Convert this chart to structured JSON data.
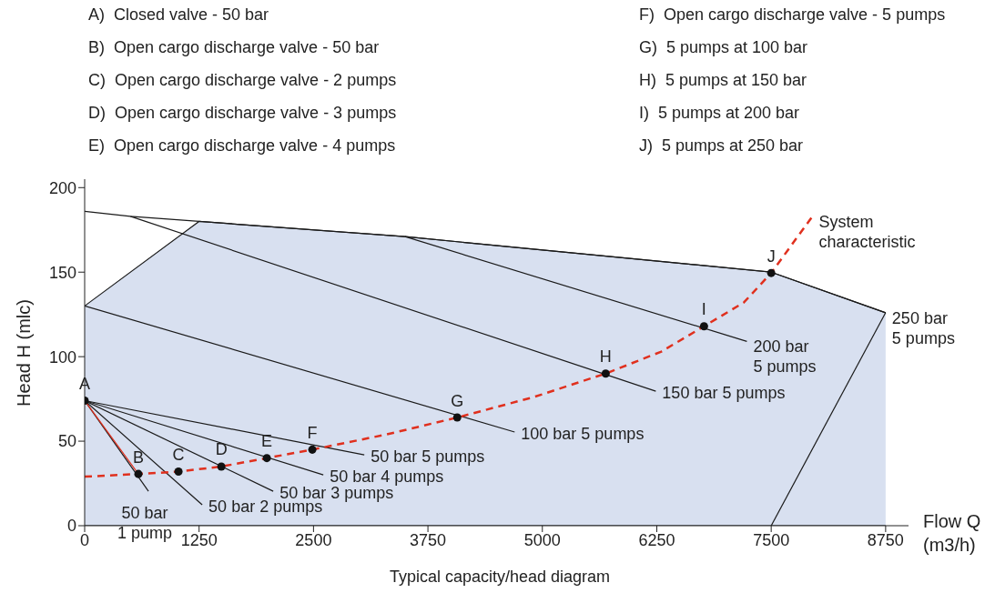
{
  "chart_data": {
    "type": "line",
    "title": "Typical capacity/head diagram",
    "xlabel": "Flow Q\n(m3/h)",
    "ylabel": "Head H (mlc)",
    "xlim": [
      0,
      9000
    ],
    "xticks": [
      0,
      1250,
      2500,
      3750,
      5000,
      6250,
      7500,
      8750
    ],
    "ylim": [
      0,
      205
    ],
    "yticks": [
      0,
      50,
      100,
      150,
      200
    ],
    "series": [
      {
        "color": "#1a1a1a",
        "x": [
          0,
          500,
          1250,
          3500,
          7500,
          8750
        ],
        "values": [
          186,
          183,
          180,
          171,
          150,
          126
        ]
      },
      {
        "color": "#1a1a1a",
        "x": [
          8750,
          7500
        ],
        "values": [
          126,
          0
        ]
      },
      {
        "color": "#1a1a1a",
        "x": [
          3500,
          7234
        ],
        "values": [
          171,
          109
        ]
      },
      {
        "color": "#1a1a1a",
        "x": [
          500,
          6239
        ],
        "values": [
          183,
          79.6
        ]
      },
      {
        "color": "#1a1a1a",
        "x": [
          0,
          4697
        ],
        "values": [
          130,
          55.4
        ]
      },
      {
        "color": "#1a1a1a",
        "x": [
          0,
          697
        ],
        "values": [
          74,
          20.4
        ]
      },
      {
        "color": "#1a1a1a",
        "x": [
          0,
          1284
        ],
        "values": [
          74,
          12.4
        ]
      },
      {
        "color": "#1a1a1a",
        "x": [
          0,
          2060
        ],
        "values": [
          74,
          20.4
        ]
      },
      {
        "color": "#1a1a1a",
        "x": [
          0,
          2607
        ],
        "values": [
          74,
          30.1
        ]
      },
      {
        "color": "#1a1a1a",
        "x": [
          0,
          3055
        ],
        "values": [
          74,
          41.9
        ]
      },
      {
        "color": "#e0301e",
        "x": [
          0,
          587
        ],
        "values": [
          74,
          30.6
        ]
      },
      {
        "color": "#e0301e",
        "line_style": "dashed",
        "x": [
          0,
          587,
          1025,
          1493,
          1990,
          2487,
          3300,
          4070,
          4900,
          5692,
          6300,
          6766,
          7200,
          7500,
          7950
        ],
        "values": [
          29,
          30.6,
          32,
          35,
          40,
          45,
          54,
          64,
          76,
          90,
          103,
          118,
          132,
          149.5,
          183
        ]
      },
      {
        "type": "scatter",
        "color": "#111111",
        "marker": "circle",
        "x": [
          0,
          587,
          1025,
          1493,
          1990,
          2487,
          4070,
          5692,
          6766,
          7500
        ],
        "values": [
          74,
          30.6,
          32,
          35,
          40,
          45,
          64,
          90,
          118,
          149.5
        ],
        "value_labels": [
          "A",
          "B",
          "C",
          "D",
          "E",
          "F",
          "G",
          "H",
          "I",
          "J"
        ]
      },
      {
        "type": "area",
        "color": "#d8e0f0",
        "x": [
          0,
          1250,
          3500,
          7500,
          8750
        ],
        "values": [
          130,
          180,
          171,
          150,
          126
        ]
      }
    ],
    "annotations": [
      "A)  Closed valve - 50 bar",
      "B)  Open cargo discharge valve - 50 bar",
      "C)  Open cargo discharge valve - 2 pumps",
      "D)  Open cargo discharge valve - 3 pumps",
      "E)  Open cargo discharge valve - 4 pumps",
      "F)  Open cargo discharge valve - 5 pumps",
      "G)  5 pumps at 100 bar",
      "H)  5 pumps at 150 bar",
      "I)  5 pumps at 200 bar",
      "J)  5 pumps at 250 bar",
      {
        "text": "System\ncharacteristic",
        "x": 7950,
        "y": 183
      },
      {
        "text": "250 bar\n5 pumps",
        "x": 8750,
        "y": 126
      },
      {
        "text": "200 bar\n5 pumps",
        "x": 7234,
        "y": 109
      },
      {
        "text": "150 bar 5 pumps",
        "x": 6239,
        "y": 79.6
      },
      {
        "text": "100 bar 5 pumps",
        "x": 4697,
        "y": 55.4
      },
      {
        "text": "50 bar 5 pumps",
        "x": 3055,
        "y": 41.9
      },
      {
        "text": "50 bar 4 pumps",
        "x": 2607,
        "y": 30.1
      },
      {
        "text": "50 bar 3 pumps",
        "x": 2060,
        "y": 20.4
      },
      {
        "text": "50 bar 2 pumps",
        "x": 1284,
        "y": 12.4
      },
      {
        "text": "50 bar\n1 pump",
        "x": 697,
        "y": 20.4
      }
    ]
  }
}
